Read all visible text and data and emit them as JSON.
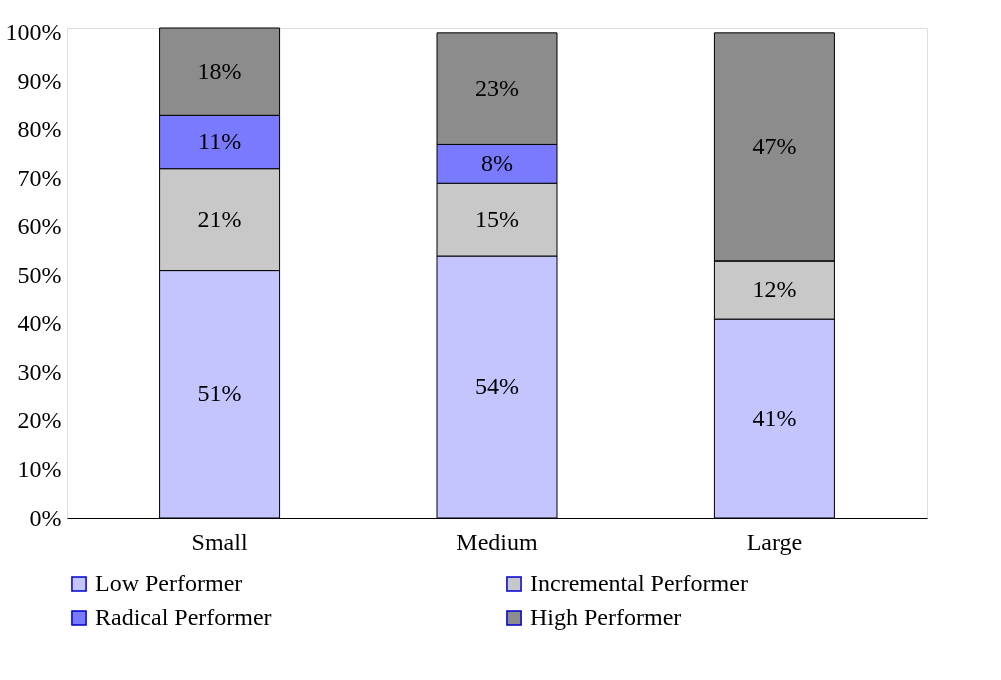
{
  "chart_data": {
    "type": "bar",
    "stacked": true,
    "categories": [
      "Small",
      "Medium",
      "Large"
    ],
    "series": [
      {
        "name": "Low Performer",
        "color": "#c4c4ff",
        "values": [
          51,
          54,
          41
        ],
        "value_labels": [
          "51%",
          "54%",
          "41%"
        ]
      },
      {
        "name": "Incremental Performer",
        "color": "#c8c8c8",
        "values": [
          21,
          15,
          12
        ],
        "value_labels": [
          "21%",
          "15%",
          "12%"
        ]
      },
      {
        "name": "Radical Performer",
        "color": "#7a7aff",
        "values": [
          11,
          8,
          0
        ],
        "value_labels": [
          "11%",
          "8%",
          null
        ]
      },
      {
        "name": "High Performer",
        "color": "#8c8c8c",
        "values": [
          18,
          23,
          47
        ],
        "value_labels": [
          "18%",
          "23%",
          "47%"
        ]
      }
    ],
    "ylim": [
      0,
      101
    ],
    "yticks": [
      {
        "value": 0,
        "label": "0%"
      },
      {
        "value": 10,
        "label": "10%"
      },
      {
        "value": 20,
        "label": "20%"
      },
      {
        "value": 30,
        "label": "30%"
      },
      {
        "value": 40,
        "label": "40%"
      },
      {
        "value": 50,
        "label": "50%"
      },
      {
        "value": 60,
        "label": "60%"
      },
      {
        "value": 70,
        "label": "70%"
      },
      {
        "value": 80,
        "label": "80%"
      },
      {
        "value": 90,
        "label": "90%"
      },
      {
        "value": 100,
        "label": "100%"
      }
    ],
    "grid": false,
    "legend": "bottom"
  }
}
